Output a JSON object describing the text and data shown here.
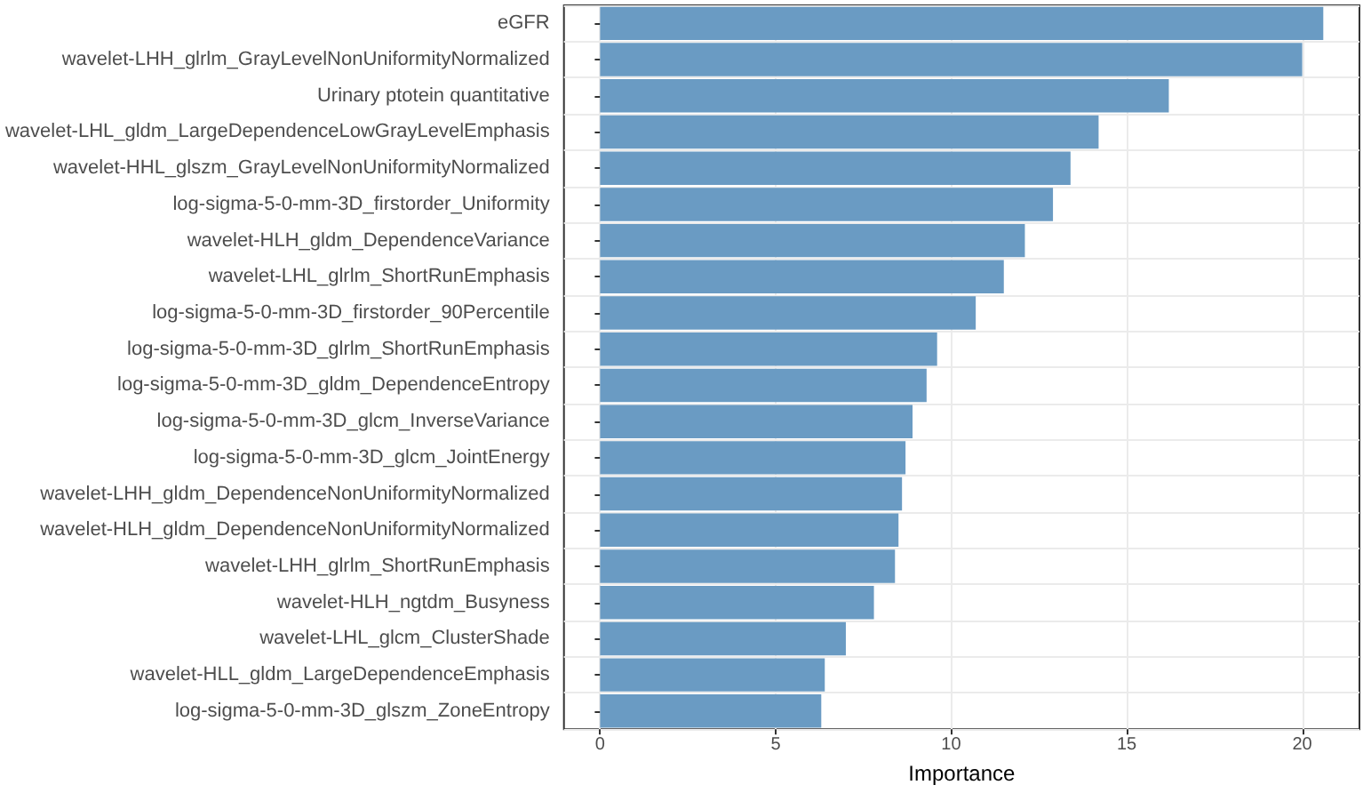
{
  "chart_data": {
    "type": "bar",
    "orientation": "horizontal",
    "xlabel": "Importance",
    "categories": [
      "eGFR",
      "wavelet-LHH_glrlm_GrayLevelNonUniformityNormalized",
      "Urinary ptotein quantitative",
      "wavelet-LHL_gldm_LargeDependenceLowGrayLevelEmphasis",
      "wavelet-HHL_glszm_GrayLevelNonUniformityNormalized",
      "log-sigma-5-0-mm-3D_firstorder_Uniformity",
      "wavelet-HLH_gldm_DependenceVariance",
      "wavelet-LHL_glrlm_ShortRunEmphasis",
      "log-sigma-5-0-mm-3D_firstorder_90Percentile",
      "log-sigma-5-0-mm-3D_glrlm_ShortRunEmphasis",
      "log-sigma-5-0-mm-3D_gldm_DependenceEntropy",
      "log-sigma-5-0-mm-3D_glcm_InverseVariance",
      "log-sigma-5-0-mm-3D_glcm_JointEnergy",
      "wavelet-LHH_gldm_DependenceNonUniformityNormalized",
      "wavelet-HLH_gldm_DependenceNonUniformityNormalized",
      "wavelet-LHH_glrlm_ShortRunEmphasis",
      "wavelet-HLH_ngtdm_Busyness",
      "wavelet-LHL_glcm_ClusterShade",
      "wavelet-HLL_gldm_LargeDependenceEmphasis",
      "log-sigma-5-0-mm-3D_glszm_ZoneEntropy"
    ],
    "values": [
      20.6,
      20.0,
      16.2,
      14.2,
      13.4,
      12.9,
      12.1,
      11.5,
      10.7,
      9.6,
      9.3,
      8.9,
      8.7,
      8.6,
      8.5,
      8.4,
      7.8,
      7.0,
      6.4,
      6.3
    ],
    "color": "#6a9bc3",
    "xlim": [
      -1.03,
      21.63
    ],
    "xticks": [
      0,
      5,
      10,
      15,
      20
    ],
    "grid": true
  }
}
